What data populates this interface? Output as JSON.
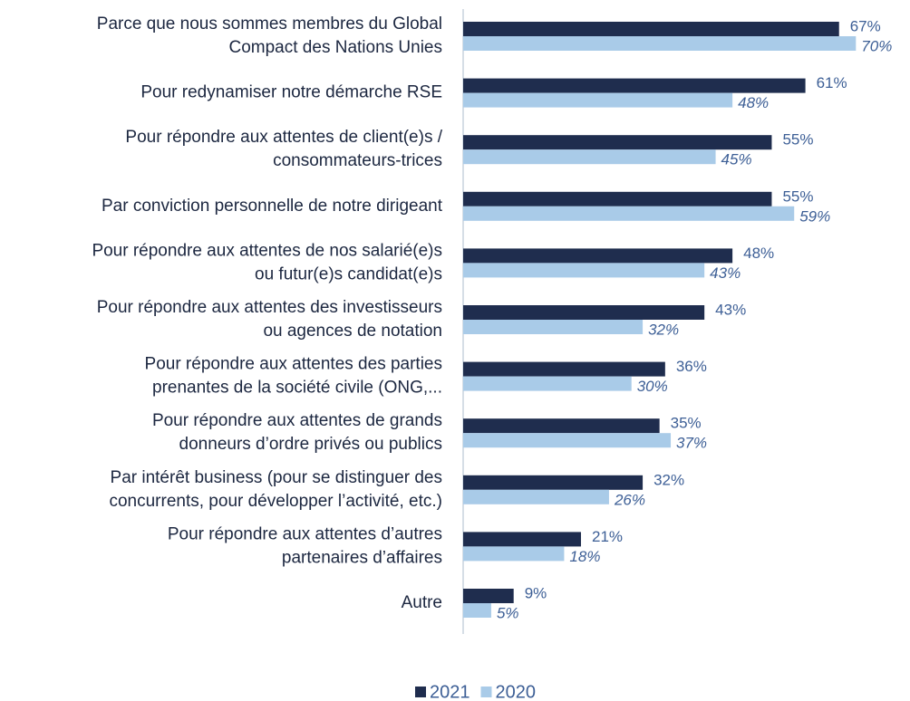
{
  "chart_data": {
    "type": "bar",
    "orientation": "horizontal",
    "categories": [
      "Parce que nous sommes membres du Global\nCompact des Nations Unies",
      "Pour redynamiser notre démarche RSE",
      "Pour répondre aux attentes de client(e)s /\nconsommateurs-trices",
      "Par conviction personnelle de notre dirigeant",
      "Pour répondre aux attentes de nos salarié(e)s\nou futur(e)s candidat(e)s",
      "Pour répondre aux attentes des investisseurs\nou agences de notation",
      "Pour répondre aux attentes des parties\nprenantes de la société civile (ONG,...",
      "Pour répondre aux attentes de grands\ndonneurs d’ordre privés ou publics",
      "Par intérêt business (pour se distinguer des\nconcurrents, pour développer l’activité, etc.)",
      "Pour répondre aux attentes d’autres\npartenaires d’affaires",
      "Autre"
    ],
    "series": [
      {
        "name": "2021",
        "color": "#1f2d4e",
        "values": [
          67,
          61,
          55,
          55,
          48,
          43,
          36,
          35,
          32,
          21,
          9
        ],
        "value_labels": [
          "67%",
          "61%",
          "55%",
          "55%",
          "48%",
          "43%",
          "36%",
          "35%",
          "32%",
          "21%",
          "9%"
        ]
      },
      {
        "name": "2020",
        "color": "#a9cbe8",
        "values": [
          70,
          48,
          45,
          59,
          43,
          32,
          30,
          37,
          26,
          18,
          5
        ],
        "value_labels": [
          "70%",
          "48%",
          "45%",
          "59%",
          "43%",
          "32%",
          "30%",
          "37%",
          "26%",
          "18%",
          "5%"
        ]
      }
    ],
    "legend": "bottom"
  }
}
